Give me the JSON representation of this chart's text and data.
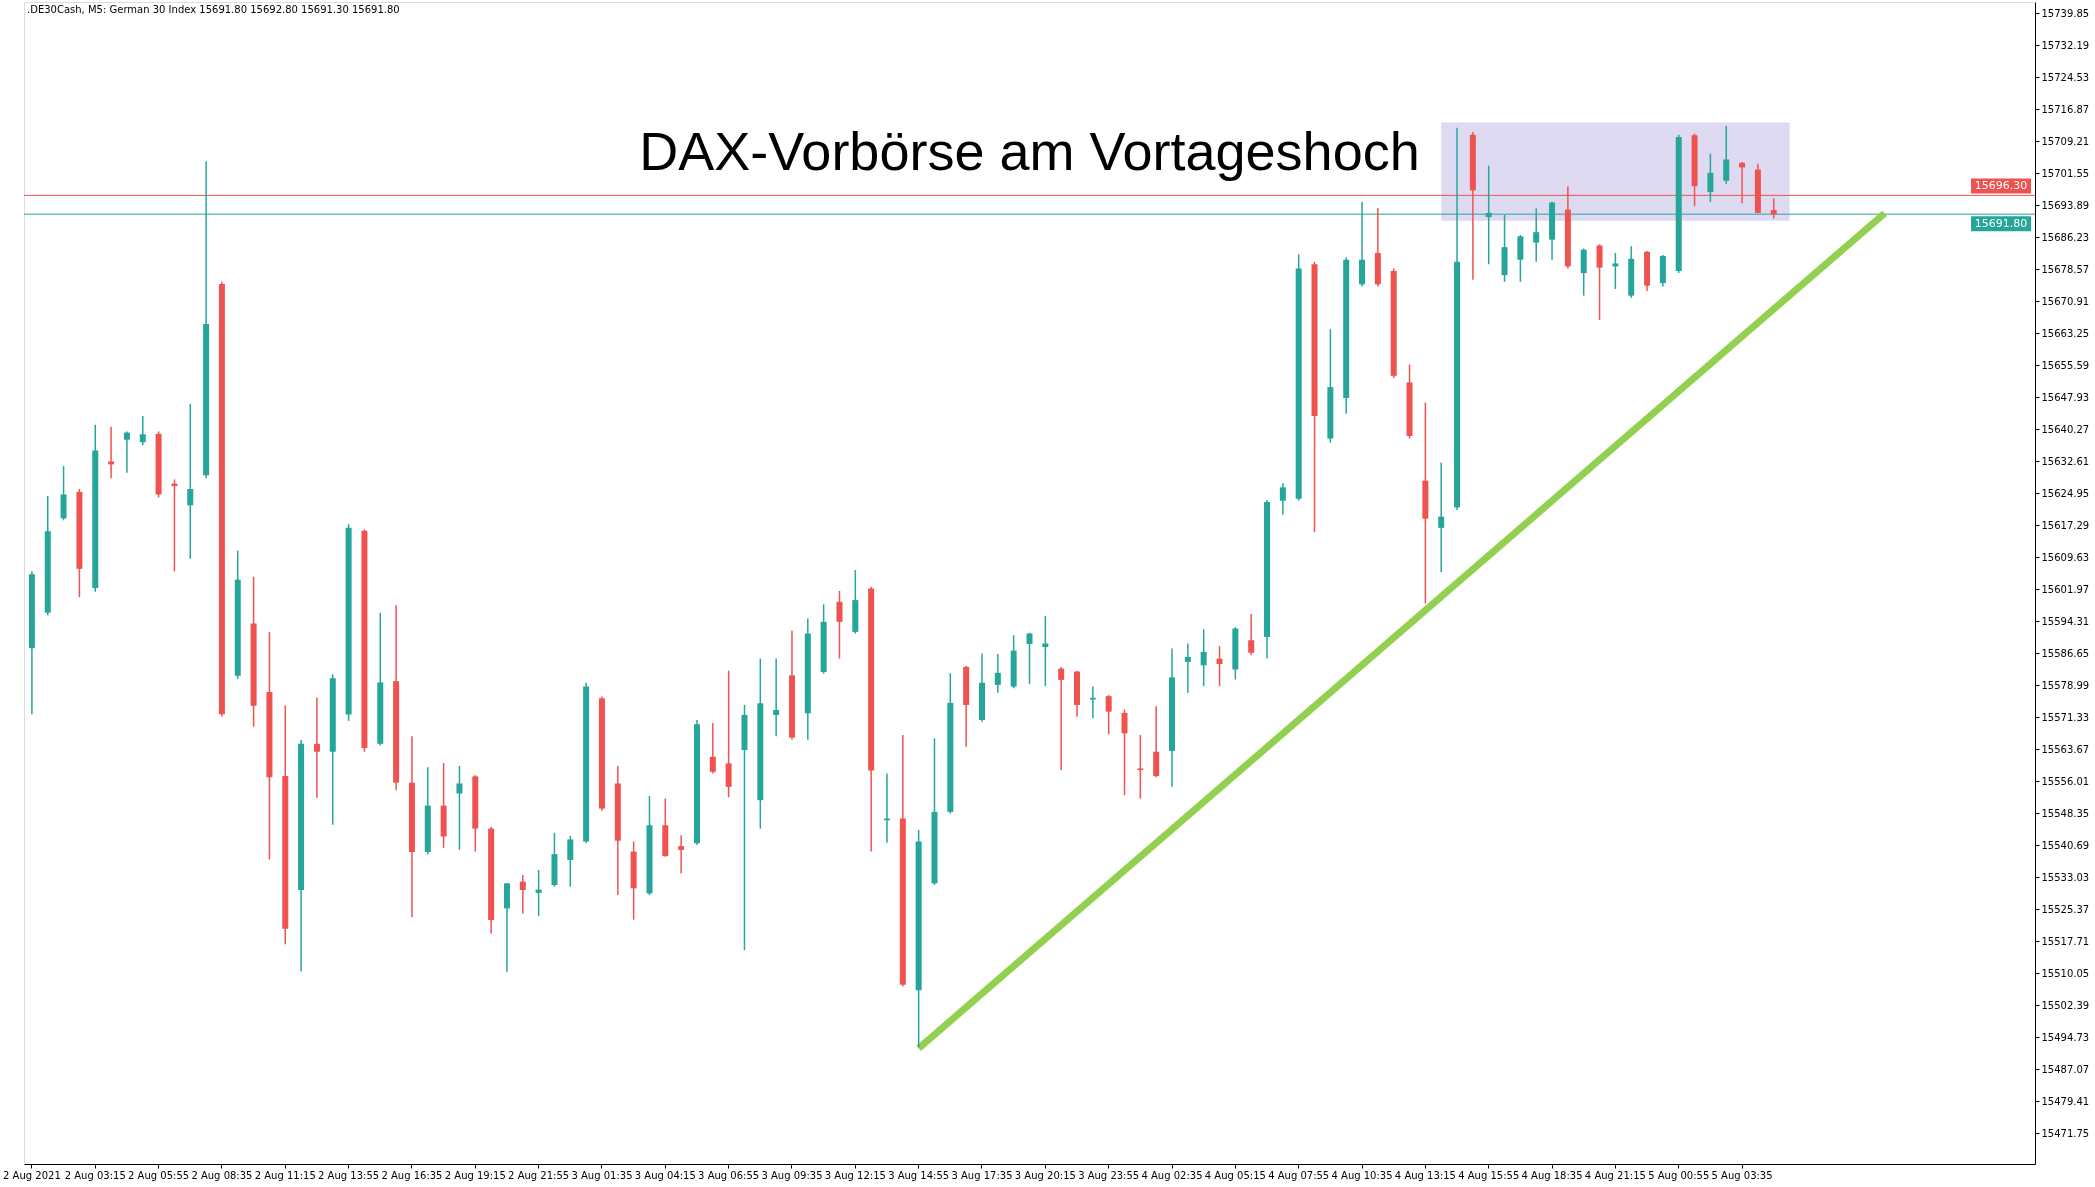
{
  "chart_data": {
    "type": "candlestick",
    "title": "DAX-Vorbörse am Vortageshoch",
    "subtitle": ".DE30Cash, M5: German 30 Index 15691.80 15692.80 15691.30 15691.80",
    "categories": [
      "2 Aug 2021",
      null,
      null,
      null,
      "2 Aug 03:15",
      null,
      null,
      null,
      "2 Aug 05:55",
      null,
      null,
      null,
      "2 Aug 08:35",
      null,
      null,
      null,
      "2 Aug 11:15",
      null,
      null,
      null,
      "2 Aug 13:55",
      null,
      null,
      null,
      "2 Aug 16:35",
      null,
      null,
      null,
      "2 Aug 19:15",
      null,
      null,
      null,
      "2 Aug 21:55",
      null,
      null,
      null,
      "3 Aug 01:35",
      null,
      null,
      null,
      "3 Aug 04:15",
      null,
      null,
      null,
      "3 Aug 06:55",
      null,
      null,
      null,
      "3 Aug 09:35",
      null,
      null,
      null,
      "3 Aug 12:15",
      null,
      null,
      null,
      "3 Aug 14:55",
      null,
      null,
      null,
      "3 Aug 17:35",
      null,
      null,
      null,
      "3 Aug 20:15",
      null,
      null,
      null,
      "3 Aug 23:55",
      null,
      null,
      null,
      "4 Aug 02:35",
      null,
      null,
      null,
      "4 Aug 05:15",
      null,
      null,
      null,
      "4 Aug 07:55",
      null,
      null,
      null,
      "4 Aug 10:35",
      null,
      null,
      null,
      "4 Aug 13:15",
      null,
      null,
      null,
      "4 Aug 15:55",
      null,
      null,
      null,
      "4 Aug 18:35",
      null,
      null,
      null,
      "4 Aug 21:15",
      null,
      null,
      null,
      "5 Aug 00:55",
      null,
      null,
      null,
      "5 Aug 03:35",
      null,
      null,
      null,
      null,
      null,
      null,
      null,
      null,
      null,
      null,
      null,
      null,
      null,
      null,
      null,
      null,
      null,
      null
    ],
    "ohlc": [
      [
        15587.9,
        15606.3,
        15572.1,
        15605.6
      ],
      [
        15596.4,
        15624.3,
        15595.8,
        15615.9
      ],
      [
        15619.0,
        15631.5,
        15618.5,
        15624.7
      ],
      [
        15625.3,
        15626.0,
        15600.1,
        15606.9
      ],
      [
        15602.3,
        15641.4,
        15601.4,
        15635.2
      ],
      [
        15632.6,
        15640.9,
        15628.6,
        15631.9
      ],
      [
        15637.8,
        15639.8,
        15629.9,
        15639.5
      ],
      [
        15637.2,
        15643.5,
        15636.5,
        15639.1
      ],
      [
        15639.2,
        15639.8,
        15624.0,
        15624.7
      ],
      [
        15627.3,
        15628.3,
        15606.3,
        15626.7
      ],
      [
        15622.1,
        15646.4,
        15609.3,
        15626.0
      ],
      [
        15629.3,
        15704.5,
        15628.6,
        15665.5
      ],
      [
        15675.1,
        15675.6,
        15571.5,
        15572.1
      ],
      [
        15581.3,
        15611.2,
        15580.6,
        15604.3
      ],
      [
        15593.8,
        15605.0,
        15569.1,
        15574.1
      ],
      [
        15577.4,
        15591.8,
        15537.3,
        15557.0
      ],
      [
        15557.3,
        15574.2,
        15517.0,
        15520.7
      ],
      [
        15530.0,
        15565.9,
        15510.5,
        15565.0
      ],
      [
        15565.0,
        15576.1,
        15552.1,
        15563.1
      ],
      [
        15563.1,
        15581.6,
        15545.6,
        15580.7
      ],
      [
        15572.0,
        15617.6,
        15570.5,
        15616.7
      ],
      [
        15616.0,
        15616.3,
        15563.1,
        15564.0
      ],
      [
        15565.0,
        15596.4,
        15564.6,
        15579.7
      ],
      [
        15580.0,
        15598.2,
        15553.9,
        15555.7
      ],
      [
        15555.7,
        15566.8,
        15523.5,
        15539.1
      ],
      [
        15539.1,
        15559.4,
        15538.5,
        15550.2
      ],
      [
        15550.2,
        15560.4,
        15540.1,
        15542.8
      ],
      [
        15553.1,
        15559.7,
        15539.6,
        15555.5
      ],
      [
        15557.2,
        15557.5,
        15539.2,
        15544.7
      ],
      [
        15544.7,
        15545.1,
        15519.6,
        15522.8
      ],
      [
        15525.6,
        15531.7,
        15510.4,
        15531.6
      ],
      [
        15532.0,
        15533.6,
        15524.4,
        15530.0
      ],
      [
        15529.3,
        15534.8,
        15523.8,
        15530.1
      ],
      [
        15531.2,
        15543.7,
        15530.8,
        15538.6
      ],
      [
        15537.2,
        15542.9,
        15530.8,
        15542.1
      ],
      [
        15541.6,
        15579.6,
        15541.2,
        15578.7
      ],
      [
        15575.9,
        15576.3,
        15549.0,
        15549.5
      ],
      [
        15555.5,
        15559.7,
        15528.8,
        15541.8
      ],
      [
        15539.2,
        15541.6,
        15522.9,
        15530.4
      ],
      [
        15529.2,
        15552.5,
        15528.8,
        15545.5
      ],
      [
        15545.5,
        15551.9,
        15538.0,
        15538.1
      ],
      [
        15540.5,
        15543.1,
        15534.0,
        15539.6
      ],
      [
        15541.2,
        15570.7,
        15540.8,
        15569.7
      ],
      [
        15561.9,
        15570.0,
        15557.9,
        15558.3
      ],
      [
        15560.3,
        15582.5,
        15552.2,
        15554.7
      ],
      [
        15563.5,
        15574.3,
        15515.6,
        15571.9
      ],
      [
        15551.5,
        15585.4,
        15544.7,
        15574.7
      ],
      [
        15571.9,
        15585.4,
        15566.8,
        15573.1
      ],
      [
        15581.4,
        15592.1,
        15566.0,
        15566.5
      ],
      [
        15572.3,
        15595.0,
        15566.0,
        15591.4
      ],
      [
        15582.2,
        15598.4,
        15581.8,
        15594.2
      ],
      [
        15599.0,
        15601.6,
        15585.4,
        15594.2
      ],
      [
        15591.8,
        15606.6,
        15591.4,
        15599.4
      ],
      [
        15602.2,
        15602.6,
        15539.2,
        15558.6
      ],
      [
        15546.7,
        15557.9,
        15541.3,
        15547.1
      ],
      [
        15547.1,
        15567.1,
        15506.9,
        15507.3
      ],
      [
        15506.0,
        15544.4,
        15492.3,
        15541.6
      ],
      [
        15531.6,
        15566.3,
        15531.2,
        15548.7
      ],
      [
        15548.7,
        15581.9,
        15548.3,
        15574.8
      ],
      [
        15583.4,
        15583.6,
        15564.3,
        15574.3
      ],
      [
        15570.7,
        15586.6,
        15570.3,
        15579.6
      ],
      [
        15579.1,
        15586.5,
        15577.2,
        15582.0
      ],
      [
        15578.7,
        15591.0,
        15578.3,
        15587.3
      ],
      [
        15588.9,
        15591.6,
        15579.3,
        15591.4
      ],
      [
        15588.2,
        15595.6,
        15578.8,
        15589.0
      ],
      [
        15583.0,
        15583.4,
        15558.7,
        15580.3
      ],
      [
        15582.3,
        15582.5,
        15571.5,
        15574.3
      ],
      [
        15575.6,
        15578.7,
        15571.1,
        15576.0
      ],
      [
        15576.4,
        15576.7,
        15567.3,
        15572.7
      ],
      [
        15572.4,
        15573.2,
        15552.7,
        15567.5
      ],
      [
        15559.1,
        15567.1,
        15551.9,
        15558.7
      ],
      [
        15563.1,
        15574.0,
        15557.0,
        15557.3
      ],
      [
        15563.3,
        15587.8,
        15554.7,
        15580.9
      ],
      [
        15584.6,
        15589.0,
        15577.2,
        15585.8
      ],
      [
        15583.8,
        15592.4,
        15578.8,
        15587.0
      ],
      [
        15585.4,
        15588.4,
        15578.8,
        15584.1
      ],
      [
        15582.8,
        15592.9,
        15580.4,
        15592.6
      ],
      [
        15589.8,
        15596.1,
        15586.2,
        15586.8
      ],
      [
        15590.6,
        15623.4,
        15585.4,
        15622.9
      ],
      [
        15623.2,
        15627.4,
        15619.9,
        15626.4
      ],
      [
        15623.7,
        15682.2,
        15623.2,
        15678.8
      ],
      [
        15679.8,
        15680.4,
        15615.7,
        15643.5
      ],
      [
        15638.1,
        15664.3,
        15637.1,
        15650.4
      ],
      [
        15647.8,
        15681.4,
        15644.0,
        15680.9
      ],
      [
        15675.0,
        15694.8,
        15674.5,
        15680.9
      ],
      [
        15682.5,
        15693.2,
        15674.5,
        15675.0
      ],
      [
        15678.2,
        15678.8,
        15652.6,
        15653.1
      ],
      [
        15651.5,
        15655.8,
        15638.1,
        15638.7
      ],
      [
        15628.0,
        15646.7,
        15598.6,
        15618.9
      ],
      [
        15616.7,
        15632.3,
        15606.1,
        15619.4
      ],
      [
        15621.6,
        15712.5,
        15621.0,
        15680.4
      ],
      [
        15710.8,
        15711.5,
        15676.1,
        15697.5
      ],
      [
        15691.1,
        15703.4,
        15679.8,
        15692.1
      ],
      [
        15677.2,
        15691.6,
        15675.6,
        15683.9
      ],
      [
        15680.9,
        15686.8,
        15675.6,
        15686.5
      ],
      [
        15685.0,
        15693.2,
        15680.4,
        15687.5
      ],
      [
        15685.7,
        15694.8,
        15680.9,
        15694.6
      ],
      [
        15692.9,
        15698.5,
        15678.8,
        15679.3
      ],
      [
        15677.7,
        15683.6,
        15672.3,
        15683.3
      ],
      [
        15684.3,
        15684.6,
        15666.5,
        15679.0
      ],
      [
        15679.3,
        15682.5,
        15673.9,
        15680.0
      ],
      [
        15672.3,
        15684.1,
        15671.8,
        15681.1
      ],
      [
        15682.8,
        15683.0,
        15673.4,
        15674.7
      ],
      [
        15675.3,
        15682.0,
        15674.5,
        15681.8
      ],
      [
        15678.2,
        15710.8,
        15677.7,
        15710.3
      ],
      [
        15710.7,
        15711.1,
        15693.7,
        15698.5
      ],
      [
        15697.1,
        15706.3,
        15694.7,
        15701.7
      ],
      [
        15699.8,
        15712.9,
        15699.1,
        15704.9
      ],
      [
        15704.1,
        15704.3,
        15694.4,
        15703.0
      ],
      [
        15702.5,
        15703.9,
        15692.0,
        15692.1
      ],
      [
        15692.8,
        15695.6,
        15690.8,
        15691.8
      ],
      null,
      null,
      null,
      null,
      null,
      null,
      null,
      null,
      null,
      null,
      null,
      null,
      null,
      null,
      null,
      null
    ],
    "colors": [
      "#26a69a",
      "#26a69a",
      "#26a69a",
      "#ef5350",
      "#26a69a",
      "#ef5350",
      "#26a69a",
      "#26a69a",
      "#ef5350",
      "#ef5350",
      "#26a69a",
      "#26a69a",
      "#ef5350",
      "#26a69a",
      "#ef5350",
      "#ef5350",
      "#ef5350",
      "#26a69a",
      "#ef5350",
      "#26a69a",
      "#26a69a",
      "#ef5350",
      "#26a69a",
      "#ef5350",
      "#ef5350",
      "#26a69a",
      "#ef5350",
      "#26a69a",
      "#ef5350",
      "#ef5350",
      "#26a69a",
      "#ef5350",
      "#26a69a",
      "#26a69a",
      "#26a69a",
      "#26a69a",
      "#ef5350",
      "#ef5350",
      "#ef5350",
      "#26a69a",
      "#ef5350",
      "#ef5350",
      "#26a69a",
      "#ef5350",
      "#ef5350",
      "#26a69a",
      "#26a69a",
      "#26a69a",
      "#ef5350",
      "#26a69a",
      "#26a69a",
      "#ef5350",
      "#26a69a",
      "#ef5350",
      "#26a69a",
      "#ef5350",
      "#26a69a",
      "#26a69a",
      "#26a69a",
      "#ef5350",
      "#26a69a",
      "#26a69a",
      "#26a69a",
      "#26a69a",
      "#26a69a",
      "#ef5350",
      "#ef5350",
      "#26a69a",
      "#ef5350",
      "#ef5350",
      "#ef5350",
      "#ef5350",
      "#26a69a",
      "#26a69a",
      "#26a69a",
      "#ef5350",
      "#26a69a",
      "#ef5350",
      "#26a69a",
      "#26a69a",
      "#26a69a",
      "#ef5350",
      "#26a69a",
      "#26a69a",
      "#26a69a",
      "#ef5350",
      "#ef5350",
      "#ef5350",
      "#ef5350",
      "#26a69a",
      "#26a69a",
      "#ef5350",
      "#26a69a",
      "#26a69a",
      "#26a69a",
      "#26a69a",
      "#26a69a",
      "#ef5350",
      "#26a69a",
      "#ef5350",
      "#26a69a",
      "#26a69a",
      "#ef5350",
      "#26a69a",
      "#26a69a",
      "#ef5350",
      "#26a69a",
      "#26a69a",
      "#ef5350",
      "#ef5350",
      "#ef5350",
      null,
      null,
      null,
      null,
      null,
      null,
      null,
      null,
      null,
      null,
      null,
      null,
      null,
      null,
      null,
      null
    ],
    "series": [
      {
        "type": "line",
        "color": "#dedaf1",
        "values": [
          null,
          null,
          null,
          null,
          null,
          null,
          null,
          null,
          null,
          null,
          null,
          null,
          null,
          null,
          null,
          null,
          null,
          null,
          null,
          null,
          null,
          null,
          null,
          null,
          null,
          null,
          null,
          null,
          null,
          null,
          null,
          null,
          null,
          null,
          null,
          null,
          null,
          null,
          null,
          null,
          null,
          null,
          null,
          null,
          null,
          null,
          null,
          null,
          null,
          null,
          null,
          null,
          null,
          null,
          null,
          null,
          null,
          null,
          null,
          null,
          null,
          null,
          null,
          null,
          null,
          null,
          null,
          null,
          null,
          null,
          null,
          null,
          null,
          null,
          null,
          null,
          null,
          null,
          null,
          null,
          null,
          null,
          null,
          null,
          null,
          null,
          null,
          null,
          null,
          15713.6,
          null,
          null,
          null,
          null,
          null,
          null,
          null,
          null,
          null,
          null,
          null,
          null,
          null,
          null,
          null,
          null,
          null,
          null,
          null,
          null,
          null,
          15713.6,
          null,
          null,
          null,
          null,
          null,
          null,
          null,
          null,
          null,
          null,
          null,
          null,
          null,
          null,
          null
        ],
        "upper": [
          null,
          null,
          null,
          null,
          null,
          null,
          null,
          null,
          null,
          null,
          null,
          null,
          null,
          null,
          null,
          null,
          null,
          null,
          null,
          null,
          null,
          null,
          null,
          null,
          null,
          null,
          null,
          null,
          null,
          null,
          null,
          null,
          null,
          null,
          null,
          null,
          null,
          null,
          null,
          null,
          null,
          null,
          null,
          null,
          null,
          null,
          null,
          null,
          null,
          null,
          null,
          null,
          null,
          null,
          null,
          null,
          null,
          null,
          null,
          null,
          null,
          null,
          null,
          null,
          null,
          null,
          null,
          null,
          null,
          null,
          null,
          null,
          null,
          null,
          null,
          null,
          null,
          null,
          null,
          null,
          null,
          null,
          null,
          null,
          null,
          null,
          null,
          null,
          null,
          15713.6,
          null,
          null,
          null,
          null,
          null,
          null,
          null,
          null,
          null,
          null,
          null,
          null,
          null,
          null,
          null,
          null,
          null,
          null,
          null,
          null,
          null,
          15713.6,
          null,
          null,
          null,
          null,
          null,
          null,
          null,
          null,
          null,
          null,
          null,
          null,
          null,
          null,
          null
        ],
        "lower": [
          null,
          null,
          null,
          null,
          null,
          null,
          null,
          null,
          null,
          null,
          null,
          null,
          null,
          null,
          null,
          null,
          null,
          null,
          null,
          null,
          null,
          null,
          null,
          null,
          null,
          null,
          null,
          null,
          null,
          null,
          null,
          null,
          null,
          null,
          null,
          null,
          null,
          null,
          null,
          null,
          null,
          null,
          null,
          null,
          null,
          null,
          null,
          null,
          null,
          null,
          null,
          null,
          null,
          null,
          null,
          null,
          null,
          null,
          null,
          null,
          null,
          null,
          null,
          null,
          null,
          null,
          null,
          null,
          null,
          null,
          null,
          null,
          null,
          null,
          null,
          null,
          null,
          null,
          null,
          null,
          null,
          null,
          null,
          null,
          null,
          null,
          null,
          null,
          null,
          15690.2,
          null,
          null,
          null,
          null,
          null,
          null,
          null,
          null,
          null,
          null,
          null,
          null,
          null,
          null,
          null,
          null,
          null,
          null,
          null,
          null,
          null,
          15690.2,
          null,
          null,
          null,
          null,
          null,
          null,
          null,
          null,
          null,
          null,
          null,
          null,
          null,
          null,
          null
        ]
      },
      {
        "type": "line",
        "color": "#92d050",
        "values": [
          null,
          null,
          null,
          null,
          null,
          null,
          null,
          null,
          null,
          null,
          null,
          null,
          null,
          null,
          null,
          null,
          null,
          null,
          null,
          null,
          null,
          null,
          null,
          null,
          null,
          null,
          null,
          null,
          null,
          null,
          null,
          null,
          null,
          null,
          null,
          null,
          null,
          null,
          null,
          null,
          null,
          null,
          null,
          null,
          null,
          null,
          null,
          null,
          null,
          null,
          null,
          null,
          null,
          null,
          null,
          null,
          15492.1,
          null,
          null,
          null,
          null,
          null,
          null,
          null,
          null,
          null,
          null,
          null,
          null,
          null,
          null,
          null,
          null,
          null,
          null,
          null,
          null,
          null,
          null,
          null,
          null,
          null,
          null,
          null,
          null,
          null,
          null,
          null,
          null,
          null,
          null,
          null,
          null,
          null,
          null,
          null,
          null,
          null,
          null,
          null,
          null,
          null,
          null,
          null,
          null,
          null,
          null,
          null,
          null,
          null,
          null,
          null,
          null,
          null,
          null,
          null,
          null,
          15692.0,
          null,
          null,
          null,
          null,
          null,
          null,
          null,
          null,
          null
        ]
      }
    ],
    "ylim": [
      15464.4,
      15742.6
    ],
    "yticks": [
      15739.85,
      15732.19,
      15724.53,
      15716.87,
      15709.21,
      15701.55,
      15693.89,
      15686.23,
      15678.57,
      15670.91,
      15663.25,
      15655.59,
      15647.93,
      15640.27,
      15632.61,
      15624.95,
      15617.29,
      15609.63,
      15601.97,
      15594.31,
      15586.65,
      15578.99,
      15571.33,
      15563.67,
      15556.01,
      15548.35,
      15540.69,
      15533.03,
      15525.37,
      15517.71,
      15510.05,
      15502.39,
      15494.73,
      15487.07,
      15479.41,
      15471.75
    ],
    "ref_lines": [
      {
        "axis": "y",
        "value": 15696.3,
        "label": "15696.30",
        "color": "#ef5350"
      },
      {
        "axis": "y",
        "value": 15691.8,
        "label": "15691.80",
        "color": "#26a69a"
      }
    ]
  }
}
